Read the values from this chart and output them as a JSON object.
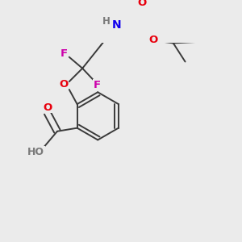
{
  "bg_color": "#ebebeb",
  "bond_color": "#3a3a3a",
  "atom_colors": {
    "O": "#e8000d",
    "N": "#1100ee",
    "F": "#cc00aa",
    "H": "#7a7a7a",
    "C": "#3a3a3a"
  },
  "line_width": 1.4,
  "font_size": 9.5
}
